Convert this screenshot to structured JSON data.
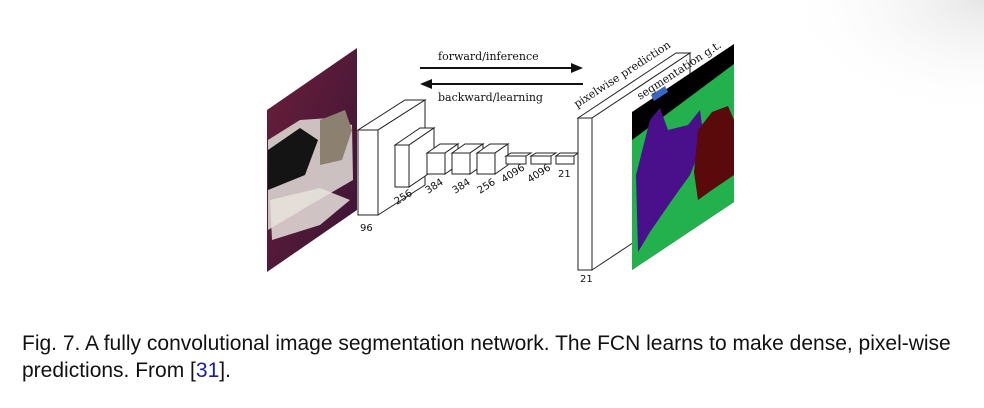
{
  "figure": {
    "arrow_forward_label": "forward/inference",
    "arrow_backward_label": "backward/learning",
    "prediction_label": "pixelwise prediction",
    "groundtruth_label": "segmentation g.t.",
    "layer_labels": [
      "96",
      "256",
      "384",
      "384",
      "256",
      "4096",
      "4096",
      "21"
    ],
    "output_label": "21"
  },
  "caption": {
    "text_before": "Fig. 7. A fully convolutional image segmentation network. The FCN learns to make dense, pixel-wise predictions. From [",
    "citation": "31",
    "text_after": "]."
  },
  "colors": {
    "citation": "#1a1aa6",
    "seg_background": "#000000",
    "seg_dog": "#4a0f8a",
    "seg_cat": "#5a0a0a",
    "seg_sofa": "#22b14c"
  }
}
